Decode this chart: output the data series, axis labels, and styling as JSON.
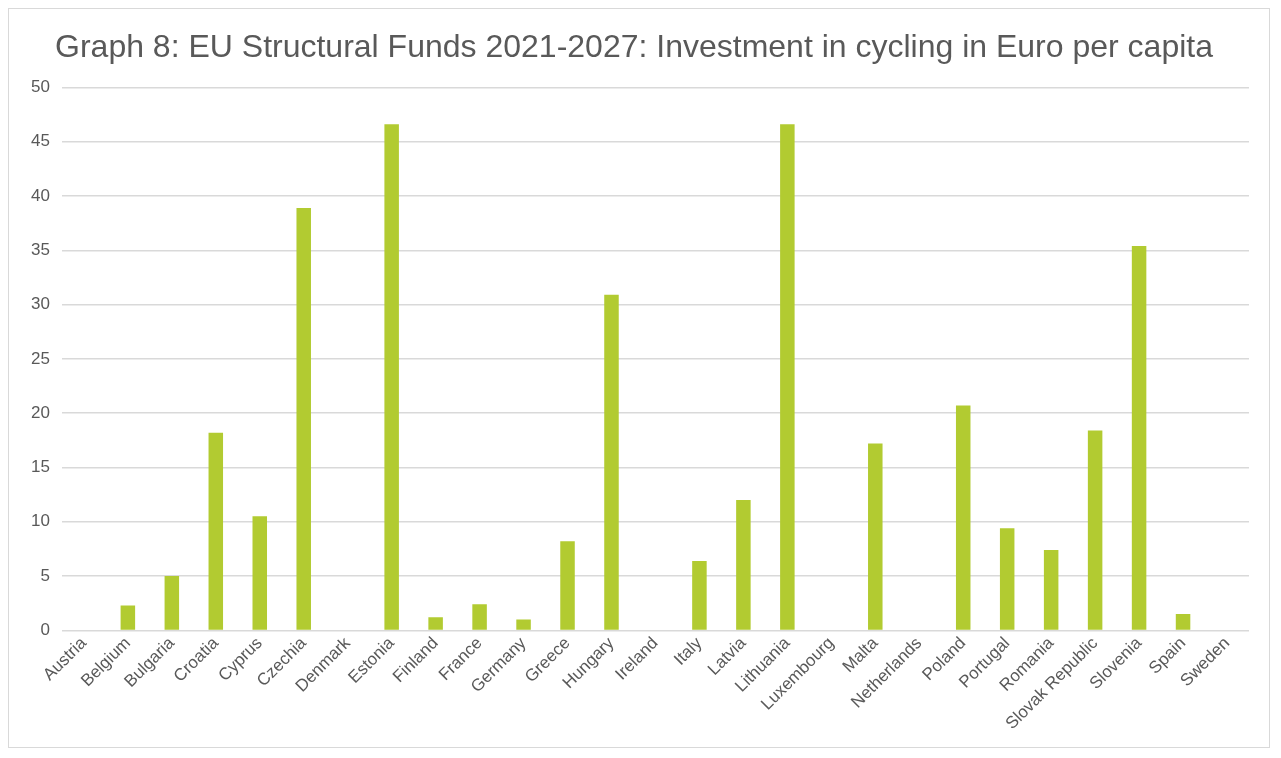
{
  "chart_data": {
    "type": "bar",
    "title": "Graph 8: EU Structural Funds 2021-2027: Investment in cycling in Euro per capita",
    "categories": [
      "Austria",
      "Belgium",
      "Bulgaria",
      "Croatia",
      "Cyprus",
      "Czechia",
      "Denmark",
      "Estonia",
      "Finland",
      "France",
      "Germany",
      "Greece",
      "Hungary",
      "Ireland",
      "Italy",
      "Latvia",
      "Lithuania",
      "Luxembourg",
      "Malta",
      "Netherlands",
      "Poland",
      "Portugal",
      "Romania",
      "Slovak Republic",
      "Slovenia",
      "Spain",
      "Sweden"
    ],
    "values": [
      0,
      2.3,
      5.0,
      18.2,
      10.5,
      38.9,
      0,
      46.6,
      1.2,
      2.4,
      1.0,
      8.2,
      30.9,
      0,
      6.4,
      12.0,
      46.6,
      0,
      17.2,
      0,
      20.7,
      9.4,
      7.4,
      18.4,
      35.4,
      1.5,
      0
    ],
    "color": "#b2cb31",
    "ylim": [
      0,
      50
    ],
    "yticks": [
      0,
      5,
      10,
      15,
      20,
      25,
      30,
      35,
      40,
      45,
      50
    ],
    "grid": "y",
    "legend": false
  }
}
